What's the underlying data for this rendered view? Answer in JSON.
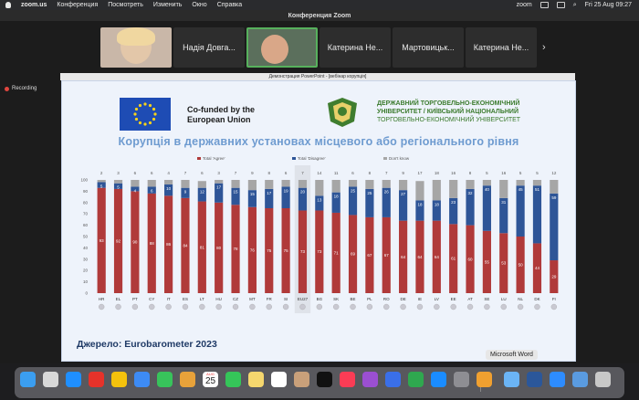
{
  "menubar": {
    "app_name": "zoom.us",
    "items": [
      "Конференция",
      "Посмотреть",
      "Изменить",
      "Окно",
      "Справка"
    ],
    "status_zoom": "zoom",
    "datetime": "Fri 25 Aug  09:27"
  },
  "window": {
    "title": "Конференция Zoom"
  },
  "participants": [
    {
      "name": ""
    },
    {
      "name": "Надія  Довга..."
    },
    {
      "name": ""
    },
    {
      "name": "Катерина Не..."
    },
    {
      "name": "Мартовицьк..."
    },
    {
      "name": "Катерина Не..."
    }
  ],
  "next_arrow": "›",
  "recording_label": "Recording",
  "share_title": "Демонстрация PowerPoint - [вебінар корупція]",
  "slide": {
    "eu_line1": "Co-funded by the",
    "eu_line2": "European Union",
    "uni_line1": "ДЕРЖАВНИЙ ТОРГОВЕЛЬНО-ЕКОНОМІЧНИЙ",
    "uni_line2": "УНІВЕРСИТЕТ / КИЇВСЬКИЙ НАЦІОНАЛЬНИЙ",
    "uni_line3": "ТОРГОВЕЛЬНО-ЕКОНОМІЧНИЙ УНІВЕРСИТЕТ",
    "source": "Джерело: Eurobarometer 2023"
  },
  "chart_data": {
    "type": "bar",
    "title": "Корупція в державних установах місцевого або регіонального рівня",
    "stacked": true,
    "categories": [
      "HR",
      "EL",
      "PT",
      "CY",
      "IT",
      "ES",
      "LT",
      "HU",
      "CZ",
      "MT",
      "FR",
      "SI",
      "EU27",
      "BG",
      "SK",
      "BE",
      "PL",
      "RO",
      "DE",
      "IE",
      "LV",
      "EE",
      "AT",
      "SE",
      "LU",
      "NL",
      "DK",
      "FI"
    ],
    "series": [
      {
        "name": "Total 'Agree'",
        "color": "#b03a3a",
        "values": [
          93,
          92,
          90,
          88,
          86,
          84,
          81,
          80,
          78,
          76,
          75,
          75,
          73,
          73,
          71,
          69,
          67,
          67,
          64,
          64,
          64,
          61,
          60,
          55,
          53,
          50,
          44,
          29
        ]
      },
      {
        "name": "Total 'Disagree'",
        "color": "#2e5597",
        "values": [
          5,
          5,
          4,
          6,
          10,
          9,
          12,
          17,
          15,
          15,
          17,
          19,
          20,
          13,
          18,
          25,
          25,
          26,
          27,
          18,
          18,
          23,
          32,
          40,
          31,
          45,
          51,
          59
        ]
      },
      {
        "name": "Don't know",
        "color": "#a6a6a6",
        "values": [
          2,
          3,
          6,
          6,
          4,
          7,
          6,
          3,
          7,
          9,
          8,
          6,
          7,
          14,
          11,
          6,
          8,
          7,
          9,
          17,
          18,
          16,
          8,
          5,
          16,
          5,
          5,
          12
        ]
      }
    ],
    "ylim": [
      0,
      100
    ],
    "yticks": [
      0,
      10,
      20,
      30,
      40,
      50,
      60,
      70,
      80,
      90,
      100
    ],
    "highlight_category": "EU27",
    "legend_position": "top",
    "grid": false
  },
  "dock": {
    "tooltip": "Microsoft Word",
    "calendar_month": "AUG",
    "calendar_day": "25",
    "icons": [
      "finder-icon",
      "launchpad-icon",
      "safari-icon",
      "opera-icon",
      "chrome-icon",
      "mail-icon",
      "messages-icon",
      "photos-icon",
      "calendar-icon",
      "facetime-icon",
      "notes-icon",
      "reminders-icon",
      "contacts-icon",
      "tv-icon",
      "music-icon",
      "podcasts-icon",
      "keynote-icon",
      "numbers-icon",
      "appstore-icon",
      "settings-icon",
      "books-icon",
      "preview-icon",
      "word-icon",
      "zoom-icon",
      "downloads-icon",
      "trash-icon"
    ],
    "colors": [
      "#3b9ef0",
      "#d8d8d8",
      "#1f8fff",
      "#e6322a",
      "#f4c20d",
      "#3d8bf5",
      "#38c35b",
      "#e8a23a",
      "#ffffff",
      "#35c659",
      "#f5d76e",
      "#ffffff",
      "#c9a07a",
      "#111111",
      "#fa3c55",
      "#9b4fd1",
      "#3a6fe8",
      "#2fa84f",
      "#1a8cff",
      "#8e8e93",
      "#f0a030",
      "#6bb4f5",
      "#2b579a",
      "#2d8cff",
      "#5a9be0",
      "#c8c8c8"
    ]
  }
}
